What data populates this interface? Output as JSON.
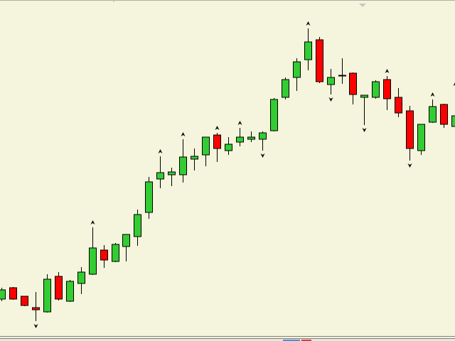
{
  "chart_data": {
    "type": "candlestick",
    "open": [
      59,
      75,
      63,
      47,
      41,
      91,
      56,
      81,
      94,
      128,
      112,
      133,
      147,
      181,
      228,
      234,
      234,
      256,
      262,
      290,
      268,
      280,
      284,
      284,
      296,
      343,
      371,
      396,
      424,
      361,
      374,
      377,
      343,
      343,
      368,
      343,
      324,
      268,
      308,
      333,
      302
    ],
    "high": [
      75,
      76,
      63,
      69,
      94,
      97,
      86,
      104,
      160,
      135,
      138,
      150,
      185,
      231,
      260,
      244,
      284,
      271,
      287,
      293,
      287,
      300,
      295,
      295,
      342,
      371,
      398,
      440,
      428,
      383,
      398,
      378,
      346,
      367,
      373,
      356,
      331,
      305,
      340,
      334,
      355
    ],
    "low": [
      56,
      58,
      49,
      28,
      40,
      57,
      55,
      66,
      93,
      103,
      111,
      112,
      134,
      172,
      215,
      218,
      223,
      240,
      246,
      252,
      262,
      274,
      280,
      268,
      295,
      340,
      352,
      381,
      363,
      347,
      362,
      333,
      304,
      341,
      325,
      315,
      254,
      262,
      307,
      300,
      290
    ],
    "close": [
      72,
      59,
      50,
      44,
      87,
      59,
      84,
      97,
      131,
      114,
      136,
      150,
      178,
      224,
      237,
      238,
      259,
      260,
      287,
      271,
      277,
      287,
      287,
      293,
      340,
      368,
      393,
      421,
      365,
      371,
      374,
      347,
      346,
      365,
      341,
      321,
      271,
      305,
      330,
      305,
      317
    ],
    "up_color": "#32cd32",
    "down_color": "#ff0000",
    "fractals_up": [
      8,
      14,
      16,
      19,
      21,
      27,
      34,
      38,
      40
    ],
    "fractals_down": [
      3,
      23,
      29,
      32,
      36
    ],
    "ylim": [
      7,
      480
    ]
  }
}
